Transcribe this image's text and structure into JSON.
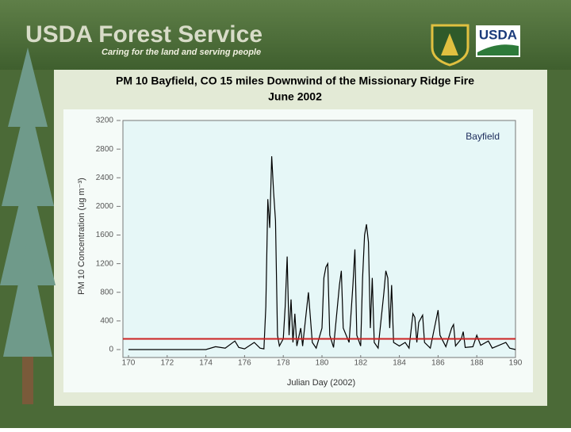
{
  "header": {
    "title": "USDA Forest Service",
    "tagline": "Caring for the land and serving people",
    "logo": "USDA"
  },
  "chart_data": {
    "type": "line",
    "title": "PM 10 Bayfield, CO 15 miles Downwind of the Missionary Ridge Fire",
    "subtitle": "June 2002",
    "x_label": "Julian Day (2002)",
    "y_label": "PM 10 Concentration (ug m⁻³)",
    "x": [
      170,
      174,
      174.5,
      175,
      175.5,
      175.7,
      176,
      176.5,
      176.8,
      177,
      177.1,
      177.2,
      177.3,
      177.4,
      177.5,
      177.6,
      177.7,
      177.8,
      178,
      178.1,
      178.2,
      178.3,
      178.4,
      178.5,
      178.6,
      178.7,
      178.9,
      179,
      179.3,
      179.5,
      179.7,
      180,
      180.1,
      180.2,
      180.3,
      180.4,
      180.6,
      180.9,
      181,
      181.1,
      181.4,
      181.6,
      181.7,
      181.8,
      182,
      182.1,
      182.2,
      182.3,
      182.4,
      182.5,
      182.6,
      182.7,
      182.9,
      183.2,
      183.3,
      183.4,
      183.5,
      183.6,
      183.7,
      184,
      184.3,
      184.5,
      184.7,
      184.8,
      184.9,
      185,
      185.2,
      185.3,
      185.6,
      186,
      186.1,
      186.4,
      186.7,
      186.8,
      186.9,
      187.2,
      187.3,
      187.4,
      187.8,
      188,
      188.2,
      188.6,
      188.8,
      189.5,
      189.7,
      190
    ],
    "series": [
      {
        "name": "Bayfield",
        "color": "#000000",
        "values": [
          0,
          0,
          40,
          20,
          120,
          30,
          10,
          100,
          20,
          10,
          600,
          2100,
          1700,
          2700,
          2200,
          1800,
          200,
          50,
          150,
          600,
          1300,
          200,
          700,
          100,
          500,
          50,
          300,
          50,
          800,
          100,
          20,
          300,
          1000,
          1150,
          1200,
          200,
          30,
          900,
          1100,
          300,
          100,
          900,
          1400,
          200,
          50,
          1000,
          1600,
          1750,
          1500,
          300,
          1000,
          100,
          20,
          800,
          1100,
          1000,
          300,
          900,
          100,
          50,
          100,
          20,
          500,
          450,
          100,
          380,
          480,
          100,
          20,
          550,
          200,
          40,
          300,
          350,
          50,
          150,
          250,
          30,
          40,
          200,
          60,
          120,
          20,
          100,
          20,
          0
        ]
      }
    ],
    "reference_line": {
      "value": 150,
      "color": "#cc2222"
    },
    "xlim": [
      170,
      190
    ],
    "xticks": [
      170,
      172,
      174,
      176,
      178,
      180,
      182,
      184,
      186,
      188,
      190
    ],
    "ylim": [
      0,
      3200
    ],
    "yticks": [
      0,
      400,
      800,
      1200,
      1600,
      2000,
      2400,
      2800,
      3200
    ],
    "legend": "upper right"
  }
}
